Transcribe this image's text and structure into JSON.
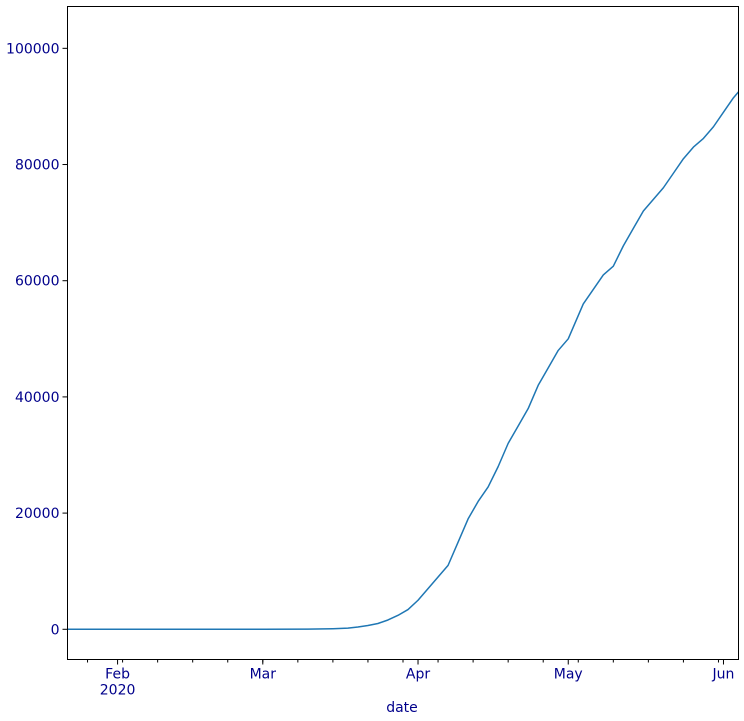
{
  "chart_data": {
    "type": "line",
    "title": "",
    "xlabel": "date",
    "ylabel": "",
    "x_range": [
      "2020-01-22",
      "2020-06-04"
    ],
    "ylim": [
      -5200,
      107200
    ],
    "x_ticks": [
      {
        "date": "2020-02-01",
        "label": "Feb",
        "sublabel": "2020"
      },
      {
        "date": "2020-03-01",
        "label": "Mar",
        "sublabel": ""
      },
      {
        "date": "2020-04-01",
        "label": "Apr",
        "sublabel": ""
      },
      {
        "date": "2020-05-01",
        "label": "May",
        "sublabel": ""
      },
      {
        "date": "2020-06-01",
        "label": "Jun",
        "sublabel": ""
      }
    ],
    "y_ticks": [
      {
        "value": 0,
        "label": "0"
      },
      {
        "value": 20000,
        "label": "20000"
      },
      {
        "value": 40000,
        "label": "40000"
      },
      {
        "value": 60000,
        "label": "60000"
      },
      {
        "value": 80000,
        "label": "80000"
      },
      {
        "value": 100000,
        "label": "100000"
      }
    ],
    "grid": false,
    "colors": {
      "line": "#1f77b4",
      "tick_text": "#00008b",
      "axis": "#000000"
    },
    "series": [
      {
        "x": [
          "2020-01-22",
          "2020-02-15",
          "2020-03-01",
          "2020-03-10",
          "2020-03-15",
          "2020-03-18",
          "2020-03-20",
          "2020-03-22",
          "2020-03-24",
          "2020-03-26",
          "2020-03-28",
          "2020-03-30",
          "2020-04-01",
          "2020-04-03",
          "2020-04-05",
          "2020-04-07",
          "2020-04-09",
          "2020-04-11",
          "2020-04-13",
          "2020-04-15",
          "2020-04-17",
          "2020-04-19",
          "2020-04-21",
          "2020-04-23",
          "2020-04-25",
          "2020-04-27",
          "2020-04-29",
          "2020-05-01",
          "2020-05-03",
          "2020-05-04",
          "2020-05-06",
          "2020-05-08",
          "2020-05-10",
          "2020-05-12",
          "2020-05-14",
          "2020-05-16",
          "2020-05-18",
          "2020-05-20",
          "2020-05-22",
          "2020-05-24",
          "2020-05-26",
          "2020-05-28",
          "2020-05-30",
          "2020-06-01",
          "2020-06-03",
          "2020-06-04"
        ],
        "y": [
          0,
          0,
          0,
          20,
          100,
          200,
          400,
          650,
          1000,
          1600,
          2400,
          3400,
          5000,
          7000,
          9000,
          11000,
          15000,
          19000,
          22000,
          24500,
          28000,
          32000,
          35000,
          38000,
          42000,
          45000,
          48000,
          50000,
          54000,
          56000,
          58500,
          61000,
          62500,
          66000,
          69000,
          72000,
          74000,
          76000,
          78500,
          81000,
          83000,
          84500,
          86500,
          89000,
          91500,
          92500
        ]
      }
    ]
  }
}
